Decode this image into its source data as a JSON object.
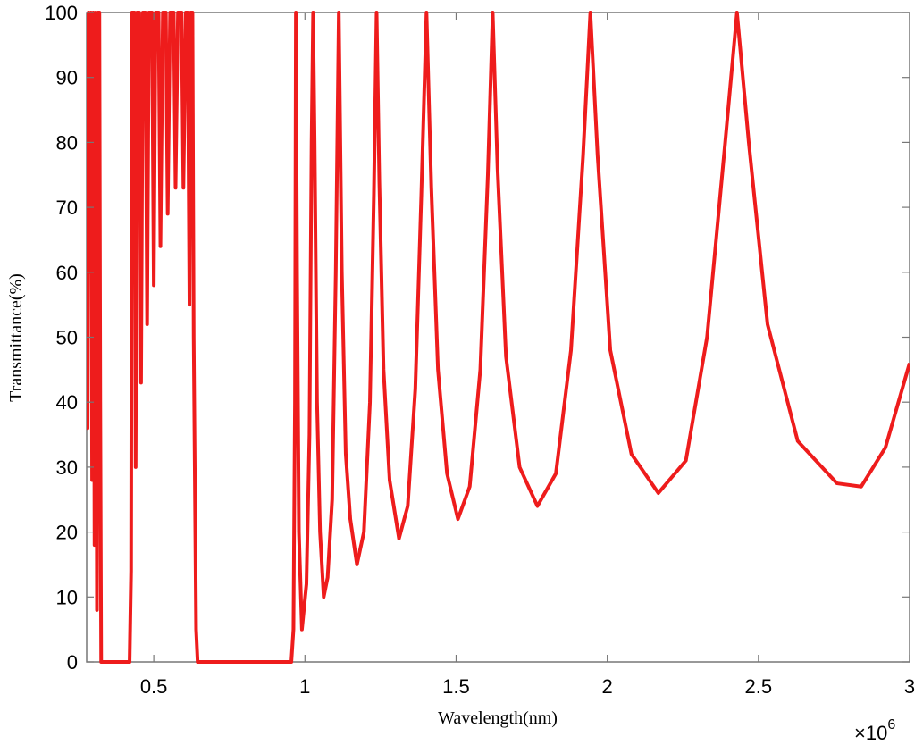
{
  "chart_data": {
    "type": "line",
    "xlabel": "Wavelength(nm)",
    "ylabel": "Transmittance(%)",
    "x_multiplier_base": "×10",
    "x_multiplier_exponent": "6",
    "x": [
      0.278,
      0.281,
      0.284,
      0.288,
      0.292,
      0.296,
      0.3,
      0.304,
      0.308,
      0.312,
      0.316,
      0.32,
      0.323,
      0.326,
      0.42,
      0.425,
      0.428,
      0.436,
      0.44,
      0.445,
      0.452,
      0.458,
      0.464,
      0.472,
      0.478,
      0.484,
      0.494,
      0.5,
      0.506,
      0.516,
      0.522,
      0.53,
      0.54,
      0.546,
      0.554,
      0.566,
      0.572,
      0.58,
      0.592,
      0.598,
      0.606,
      0.612,
      0.618,
      0.622,
      0.628,
      0.632,
      0.64,
      0.645,
      0.955,
      0.962,
      0.967,
      0.97,
      0.974,
      0.98,
      0.99,
      1.005,
      1.015,
      1.022,
      1.027,
      1.032,
      1.04,
      1.05,
      1.062,
      1.075,
      1.09,
      1.102,
      1.112,
      1.122,
      1.135,
      1.15,
      1.172,
      1.195,
      1.215,
      1.228,
      1.237,
      1.246,
      1.26,
      1.28,
      1.311,
      1.34,
      1.365,
      1.385,
      1.402,
      1.418,
      1.44,
      1.47,
      1.506,
      1.545,
      1.58,
      1.605,
      1.621,
      1.637,
      1.665,
      1.71,
      1.769,
      1.83,
      1.88,
      1.92,
      1.944,
      1.968,
      2.01,
      2.08,
      2.169,
      2.26,
      2.33,
      2.39,
      2.429,
      2.468,
      2.53,
      2.63,
      2.76,
      2.84,
      2.92,
      3.0
    ],
    "series": [
      {
        "name": "Transmittance",
        "color": "#ee1c1c",
        "values": [
          88,
          36,
          100,
          60,
          100,
          28,
          100,
          18,
          100,
          8,
          100,
          100,
          40,
          0,
          0,
          14,
          100,
          100,
          30,
          100,
          100,
          43,
          100,
          100,
          52,
          100,
          100,
          58,
          100,
          100,
          64,
          100,
          100,
          69,
          100,
          100,
          73,
          100,
          100,
          73,
          100,
          100,
          55,
          100,
          100,
          50,
          5,
          0,
          0,
          5,
          40,
          100,
          60,
          20,
          5,
          12,
          35,
          80,
          100,
          80,
          40,
          20,
          10,
          13,
          25,
          60,
          100,
          60,
          32,
          22,
          15,
          20,
          40,
          72,
          100,
          74,
          45,
          28,
          19,
          24,
          42,
          72,
          100,
          73,
          45,
          29,
          22,
          27,
          45,
          75,
          100,
          76,
          47,
          30,
          24,
          29,
          48,
          78,
          100,
          78,
          48,
          32,
          26,
          31,
          50,
          80,
          100,
          80,
          52,
          34,
          27.5,
          27,
          33,
          46
        ]
      }
    ],
    "xlim": [
      0.278,
      3.0
    ],
    "ylim": [
      0,
      100
    ],
    "xticks": [
      0.5,
      1,
      1.5,
      2,
      2.5,
      3
    ],
    "yticks": [
      0,
      10,
      20,
      30,
      40,
      50,
      60,
      70,
      80,
      90,
      100
    ],
    "grid": false
  }
}
